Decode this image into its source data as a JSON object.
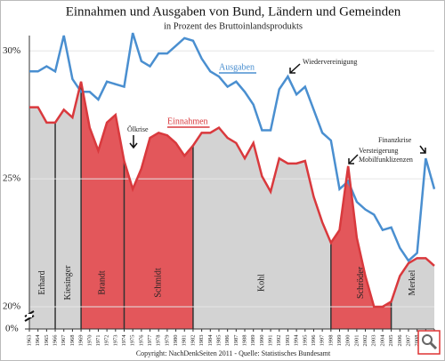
{
  "chart_data": {
    "type": "line",
    "title": "Einnahmen und Ausgaben von Bund, Ländern und Gemeinden",
    "subtitle": "in Prozent des Bruttoinlandsprodukts",
    "x": [
      1963,
      1964,
      1965,
      1966,
      1967,
      1968,
      1969,
      1970,
      1971,
      1972,
      1973,
      1974,
      1975,
      1976,
      1977,
      1978,
      1979,
      1980,
      1981,
      1982,
      1983,
      1984,
      1985,
      1986,
      1987,
      1988,
      1989,
      1990,
      1991,
      1992,
      1993,
      1994,
      1995,
      1996,
      1997,
      1998,
      1999,
      2000,
      2001,
      2002,
      2003,
      2004,
      2005,
      2006,
      2007,
      2008,
      2009,
      2010
    ],
    "xlim": [
      1963,
      2010
    ],
    "series": [
      {
        "name": "Ausgaben",
        "color": "#4a8fd0",
        "values": [
          29.2,
          29.2,
          29.4,
          29.2,
          30.6,
          28.9,
          28.4,
          28.4,
          28.1,
          28.8,
          28.7,
          28.6,
          30.7,
          29.6,
          29.4,
          29.9,
          29.9,
          30.2,
          30.5,
          30.4,
          29.7,
          29.2,
          29.0,
          28.6,
          28.8,
          28.4,
          27.9,
          26.9,
          26.9,
          28.5,
          29.0,
          28.3,
          28.6,
          27.7,
          26.8,
          26.5,
          24.6,
          24.9,
          24.1,
          23.8,
          23.6,
          23.0,
          23.1,
          22.3,
          21.8,
          22.1,
          25.8,
          24.6
        ]
      },
      {
        "name": "Einnahmen",
        "color": "#d9393d",
        "values": [
          27.8,
          27.8,
          27.2,
          27.2,
          27.7,
          27.4,
          28.8,
          27.0,
          26.1,
          27.2,
          27.5,
          25.7,
          24.6,
          25.4,
          26.6,
          26.8,
          26.7,
          26.4,
          25.9,
          26.3,
          26.8,
          26.8,
          27.0,
          26.6,
          26.4,
          25.8,
          26.4,
          25.1,
          24.5,
          25.8,
          25.6,
          25.6,
          25.7,
          24.3,
          23.3,
          22.5,
          23.0,
          25.5,
          22.7,
          21.2,
          20.0,
          20.0,
          20.2,
          21.2,
          21.7,
          21.9,
          21.9,
          21.6
        ]
      }
    ],
    "ylim": [
      20,
      30.6
    ],
    "yticks": [
      {
        "value": 20,
        "label": "20%"
      },
      {
        "value": 25,
        "label": "25%"
      },
      {
        "value": 30,
        "label": "30%"
      }
    ],
    "break_tick": {
      "value": 0,
      "label": "0%"
    },
    "grid": true,
    "periods": [
      {
        "name": "Erhard",
        "start": 1963,
        "end": 1966,
        "color": "#d3d3d3"
      },
      {
        "name": "Kiesinger",
        "start": 1966,
        "end": 1969,
        "color": "#d3d3d3"
      },
      {
        "name": "Brandt",
        "start": 1969,
        "end": 1974,
        "color": "#e3575b"
      },
      {
        "name": "Schmidt",
        "start": 1974,
        "end": 1982,
        "color": "#e3575b"
      },
      {
        "name": "Kohl",
        "start": 1982,
        "end": 1998,
        "color": "#d3d3d3"
      },
      {
        "name": "Schröder",
        "start": 1998,
        "end": 2005,
        "color": "#e3575b"
      },
      {
        "name": "Merkel",
        "start": 2005,
        "end": 2010,
        "color": "#d3d3d3"
      }
    ],
    "annotations": [
      "Ölkrise",
      "Wiedervereinigung",
      "Versteigerung",
      "Mobilfunklizenzen",
      "Finanzkrise"
    ],
    "footer": "Copyright: NachDenkSeiten 2011 - Quelle: Statistisches Bundesamt"
  }
}
